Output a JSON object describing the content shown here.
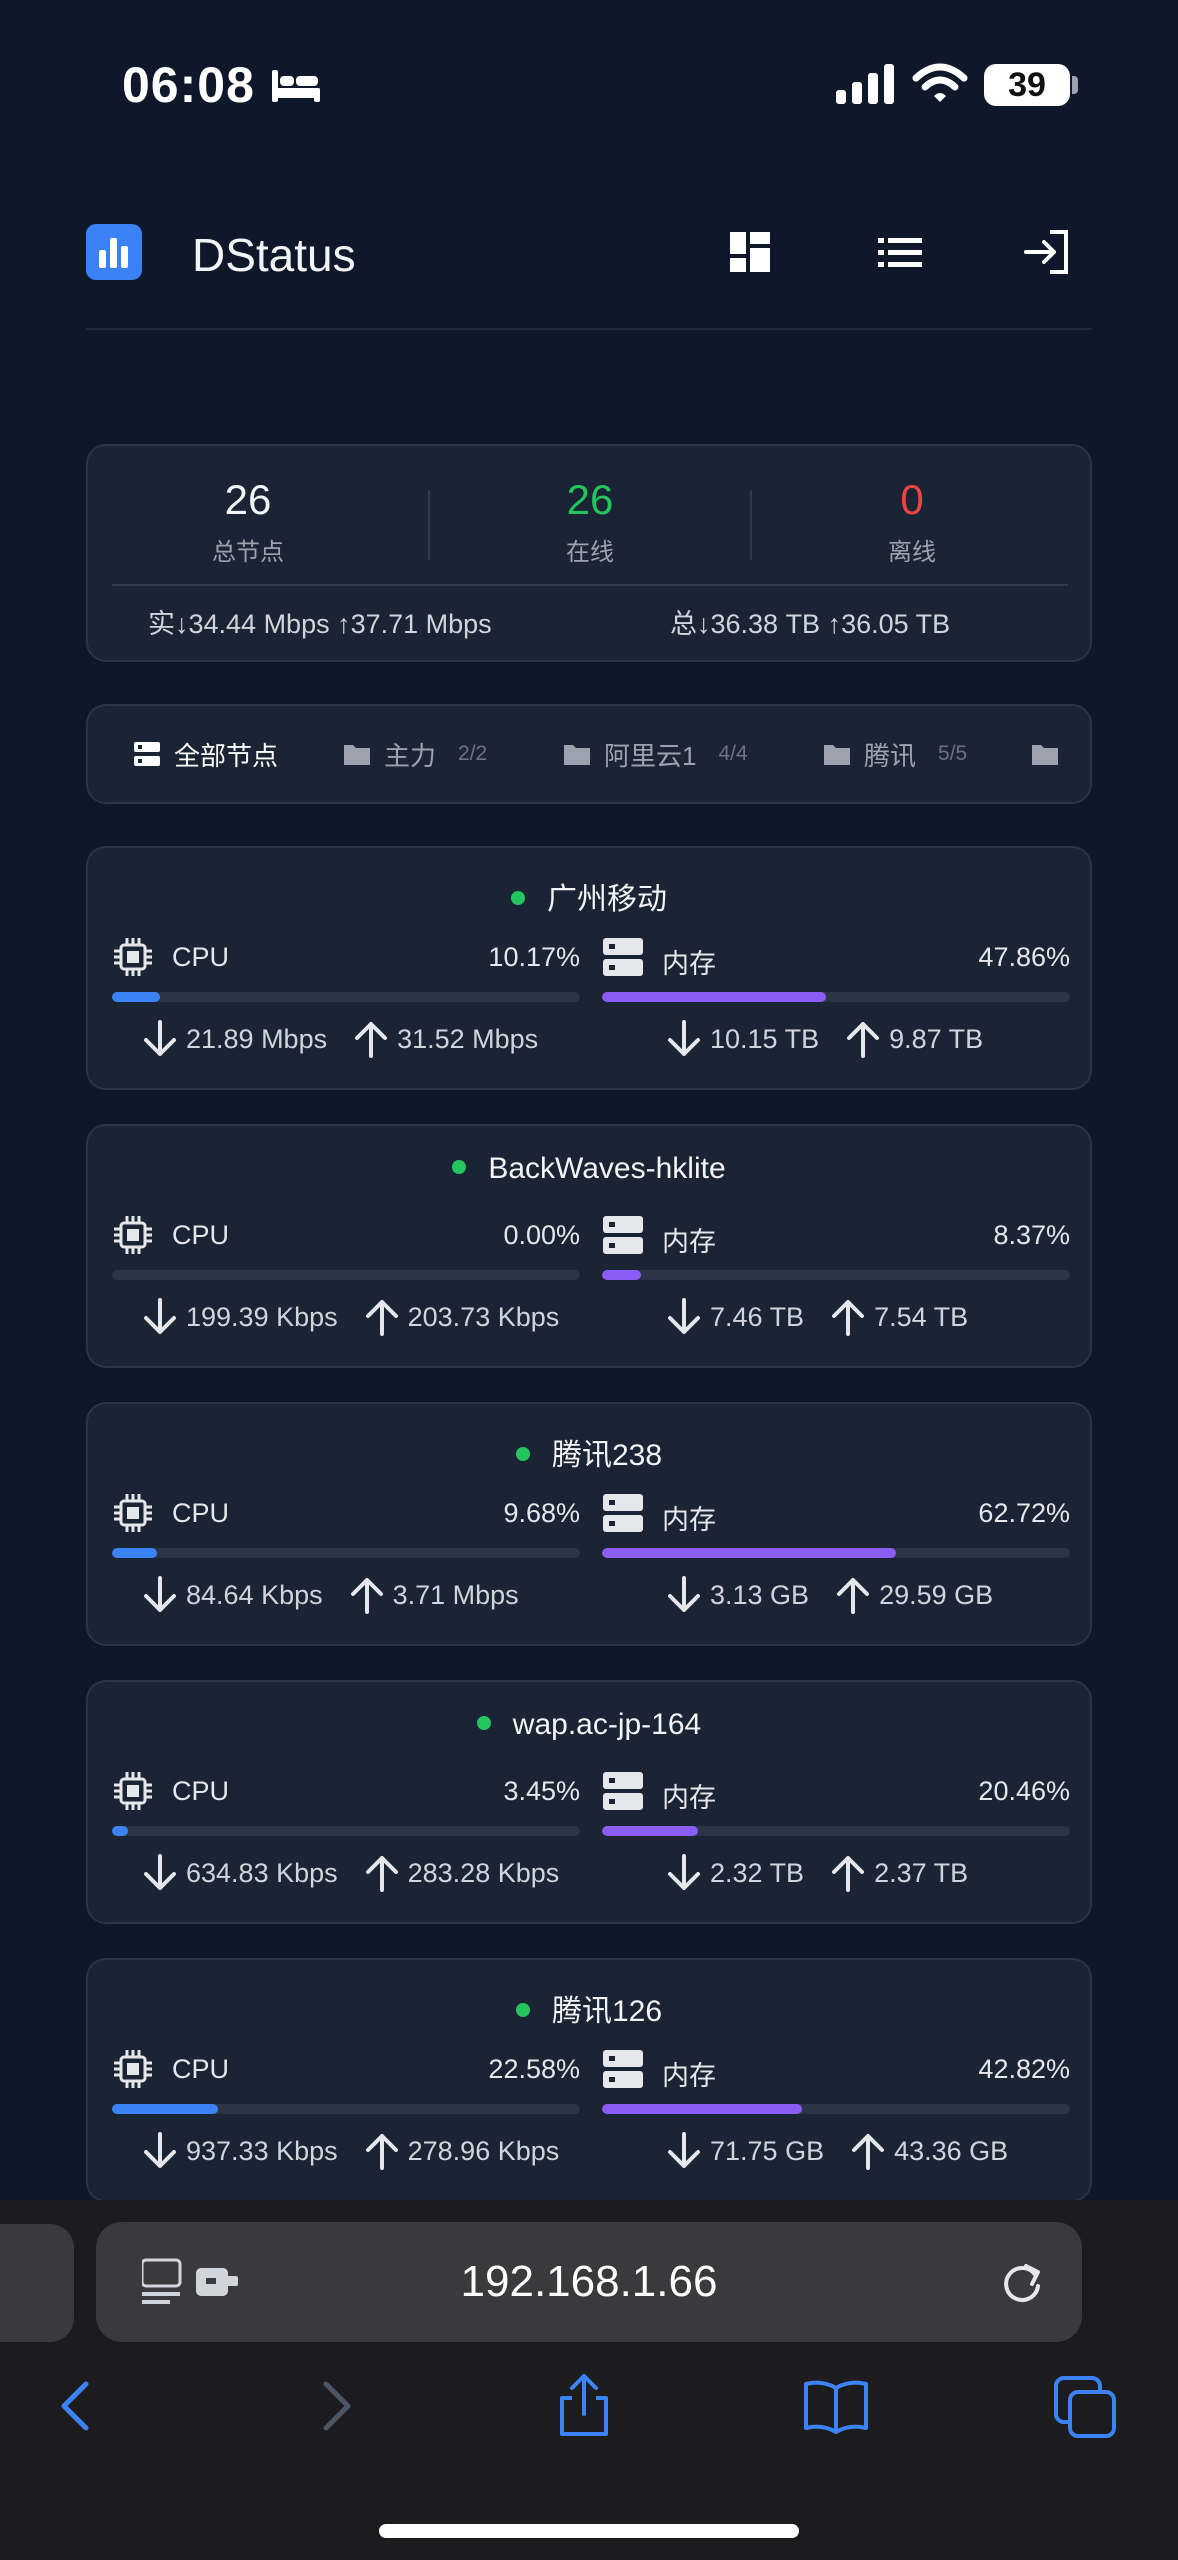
{
  "status_bar": {
    "time": "06:08",
    "battery": "39"
  },
  "header": {
    "title": "DStatus"
  },
  "summary": {
    "total": {
      "value": "26",
      "label": "总节点"
    },
    "online": {
      "value": "26",
      "label": "在线"
    },
    "offline": {
      "value": "0",
      "label": "离线"
    },
    "realtime": "实↓34.44 Mbps  ↑37.71 Mbps",
    "totals": "总↓36.38 TB  ↑36.05 TB"
  },
  "tabs": [
    {
      "label": "全部节点",
      "count": ""
    },
    {
      "label": "主力",
      "count": "2/2"
    },
    {
      "label": "阿里云1",
      "count": "4/4"
    },
    {
      "label": "腾讯",
      "count": "5/5"
    }
  ],
  "labels": {
    "cpu": "CPU",
    "mem": "内存"
  },
  "colors": {
    "cpu": "#3b82f6",
    "mem": "#8b5cf6",
    "online": "#22c55e",
    "offline": "#ef4444"
  },
  "nodes": [
    {
      "name": "广州移动",
      "cpu": "10.17%",
      "mem": "47.86%",
      "cpu_frac": 0.1017,
      "mem_frac": 0.4786,
      "down": "21.89 Mbps",
      "up": "31.52 Mbps",
      "total_down": "10.15 TB",
      "total_up": "9.87 TB"
    },
    {
      "name": "BackWaves-hklite",
      "cpu": "0.00%",
      "mem": "8.37%",
      "cpu_frac": 0.0,
      "mem_frac": 0.0837,
      "down": "199.39 Kbps",
      "up": "203.73 Kbps",
      "total_down": "7.46 TB",
      "total_up": "7.54 TB"
    },
    {
      "name": "腾讯238",
      "cpu": "9.68%",
      "mem": "62.72%",
      "cpu_frac": 0.0968,
      "mem_frac": 0.6272,
      "down": "84.64 Kbps",
      "up": "3.71 Mbps",
      "total_down": "3.13 GB",
      "total_up": "29.59 GB"
    },
    {
      "name": "wap.ac-jp-164",
      "cpu": "3.45%",
      "mem": "20.46%",
      "cpu_frac": 0.0345,
      "mem_frac": 0.2046,
      "down": "634.83 Kbps",
      "up": "283.28 Kbps",
      "total_down": "2.32 TB",
      "total_up": "2.37 TB"
    },
    {
      "name": "腾讯126",
      "cpu": "22.58%",
      "mem": "42.82%",
      "cpu_frac": 0.2258,
      "mem_frac": 0.4282,
      "down": "937.33 Kbps",
      "up": "278.96 Kbps",
      "total_down": "71.75 GB",
      "total_up": "43.36 GB"
    }
  ],
  "browser": {
    "url": "192.168.1.66"
  },
  "icons": [
    "bed-icon",
    "signal-icon",
    "wifi-icon",
    "battery-icon",
    "logo-chart-icon",
    "dashboard-icon",
    "list-icon",
    "login-icon",
    "folder-icon",
    "server-icon",
    "cpu-chip-icon",
    "arrow-down-icon",
    "arrow-up-icon",
    "reader-icon",
    "extension-icon",
    "reload-icon",
    "back-icon",
    "forward-icon",
    "share-icon",
    "bookmarks-icon",
    "tabs-icon"
  ]
}
